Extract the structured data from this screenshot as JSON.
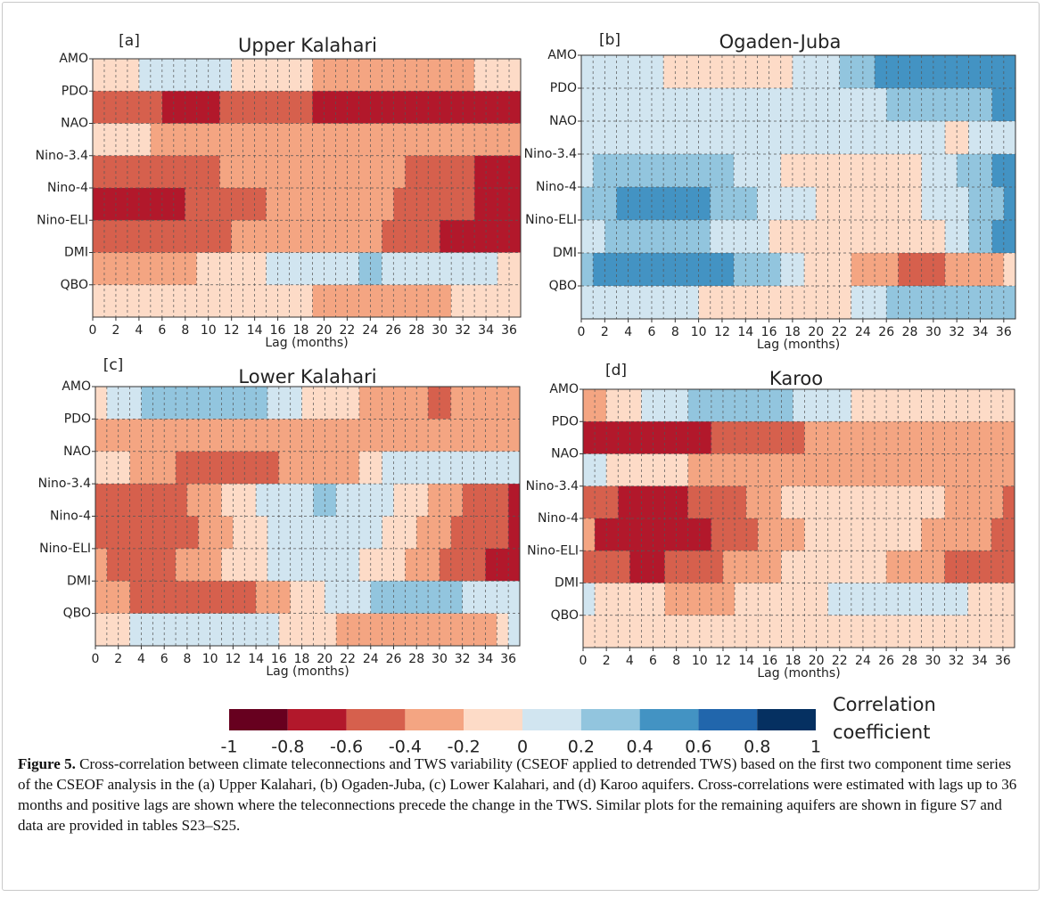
{
  "chart_data": [
    {
      "type": "heatmap",
      "label": "[a]",
      "title": "Upper Kalahari",
      "xlabel": "Lag (months)",
      "rows": [
        "AMO",
        "PDO",
        "NAO",
        "Nino-3.4",
        "Nino-4",
        "Nino-ELI",
        "DMI",
        "QBO"
      ],
      "xlim": [
        0,
        37
      ],
      "xticks": [
        0,
        2,
        4,
        6,
        8,
        10,
        12,
        14,
        16,
        18,
        20,
        22,
        24,
        26,
        28,
        30,
        32,
        34,
        36
      ],
      "cells": [
        [
          [
            0,
            4,
            -0.1
          ],
          [
            4,
            12,
            0.1
          ],
          [
            12,
            19,
            -0.1
          ],
          [
            19,
            33,
            -0.3
          ],
          [
            33,
            37,
            -0.1
          ]
        ],
        [
          [
            0,
            6,
            -0.5
          ],
          [
            6,
            11,
            -0.7
          ],
          [
            11,
            19,
            -0.5
          ],
          [
            19,
            37,
            -0.7
          ]
        ],
        [
          [
            0,
            5,
            -0.1
          ],
          [
            5,
            37,
            -0.3
          ]
        ],
        [
          [
            0,
            11,
            -0.5
          ],
          [
            11,
            27,
            -0.3
          ],
          [
            27,
            33,
            -0.5
          ],
          [
            33,
            37,
            -0.7
          ]
        ],
        [
          [
            0,
            8,
            -0.7
          ],
          [
            8,
            15,
            -0.5
          ],
          [
            15,
            26,
            -0.3
          ],
          [
            26,
            33,
            -0.5
          ],
          [
            33,
            37,
            -0.7
          ]
        ],
        [
          [
            0,
            12,
            -0.5
          ],
          [
            12,
            25,
            -0.3
          ],
          [
            25,
            30,
            -0.5
          ],
          [
            30,
            37,
            -0.7
          ]
        ],
        [
          [
            0,
            9,
            -0.3
          ],
          [
            9,
            15,
            -0.1
          ],
          [
            15,
            23,
            0.1
          ],
          [
            23,
            25,
            0.3
          ],
          [
            25,
            35,
            0.1
          ],
          [
            35,
            37,
            -0.1
          ]
        ],
        [
          [
            0,
            19,
            -0.1
          ],
          [
            19,
            31,
            -0.3
          ],
          [
            31,
            37,
            -0.1
          ]
        ]
      ]
    },
    {
      "type": "heatmap",
      "label": "[b]",
      "title": "Ogaden-Juba",
      "xlabel": "Lag (months)",
      "rows": [
        "AMO",
        "PDO",
        "NAO",
        "Nino-3.4",
        "Nino-4",
        "Nino-ELI",
        "DMI",
        "QBO"
      ],
      "xlim": [
        0,
        37
      ],
      "xticks": [
        0,
        2,
        4,
        6,
        8,
        10,
        12,
        14,
        16,
        18,
        20,
        22,
        24,
        26,
        28,
        30,
        32,
        34,
        36
      ],
      "cells": [
        [
          [
            0,
            7,
            0.1
          ],
          [
            7,
            18,
            -0.1
          ],
          [
            18,
            22,
            0.1
          ],
          [
            22,
            25,
            0.3
          ],
          [
            25,
            37,
            0.5
          ]
        ],
        [
          [
            0,
            26,
            0.1
          ],
          [
            26,
            35,
            0.3
          ],
          [
            35,
            37,
            0.5
          ]
        ],
        [
          [
            0,
            31,
            0.1
          ],
          [
            31,
            33,
            -0.1
          ],
          [
            33,
            37,
            0.1
          ]
        ],
        [
          [
            0,
            1,
            0.1
          ],
          [
            1,
            13,
            0.3
          ],
          [
            13,
            17,
            0.1
          ],
          [
            17,
            29,
            -0.1
          ],
          [
            29,
            32,
            0.1
          ],
          [
            32,
            35,
            0.3
          ],
          [
            35,
            37,
            0.5
          ]
        ],
        [
          [
            0,
            3,
            0.3
          ],
          [
            3,
            11,
            0.5
          ],
          [
            11,
            15,
            0.3
          ],
          [
            15,
            20,
            0.1
          ],
          [
            20,
            29,
            -0.1
          ],
          [
            29,
            33,
            0.1
          ],
          [
            33,
            36,
            0.3
          ],
          [
            36,
            37,
            0.5
          ]
        ],
        [
          [
            0,
            2,
            0.1
          ],
          [
            2,
            11,
            0.3
          ],
          [
            11,
            16,
            0.1
          ],
          [
            16,
            31,
            -0.1
          ],
          [
            31,
            33,
            0.1
          ],
          [
            33,
            35,
            0.3
          ],
          [
            35,
            37,
            0.5
          ]
        ],
        [
          [
            0,
            1,
            0.3
          ],
          [
            1,
            13,
            0.5
          ],
          [
            13,
            17,
            0.3
          ],
          [
            17,
            19,
            0.1
          ],
          [
            19,
            23,
            -0.1
          ],
          [
            23,
            27,
            -0.3
          ],
          [
            27,
            31,
            -0.5
          ],
          [
            31,
            36,
            -0.3
          ],
          [
            36,
            37,
            -0.1
          ]
        ],
        [
          [
            0,
            10,
            0.1
          ],
          [
            10,
            23,
            -0.1
          ],
          [
            23,
            26,
            0.1
          ],
          [
            26,
            37,
            0.3
          ]
        ]
      ]
    },
    {
      "type": "heatmap",
      "label": "[c]",
      "title": "Lower Kalahari",
      "xlabel": "Lag (months)",
      "rows": [
        "AMO",
        "PDO",
        "NAO",
        "Nino-3.4",
        "Nino-4",
        "Nino-ELI",
        "DMI",
        "QBO"
      ],
      "xlim": [
        0,
        37
      ],
      "xticks": [
        0,
        2,
        4,
        6,
        8,
        10,
        12,
        14,
        16,
        18,
        20,
        22,
        24,
        26,
        28,
        30,
        32,
        34,
        36
      ],
      "cells": [
        [
          [
            0,
            1,
            -0.1
          ],
          [
            1,
            4,
            0.1
          ],
          [
            4,
            15,
            0.3
          ],
          [
            15,
            18,
            0.1
          ],
          [
            18,
            23,
            -0.1
          ],
          [
            23,
            29,
            -0.3
          ],
          [
            29,
            31,
            -0.5
          ],
          [
            31,
            37,
            -0.3
          ]
        ],
        [
          [
            0,
            37,
            -0.3
          ]
        ],
        [
          [
            0,
            3,
            -0.1
          ],
          [
            3,
            7,
            -0.3
          ],
          [
            7,
            16,
            -0.5
          ],
          [
            16,
            23,
            -0.3
          ],
          [
            23,
            25,
            -0.1
          ],
          [
            25,
            37,
            0.1
          ]
        ],
        [
          [
            0,
            8,
            -0.5
          ],
          [
            8,
            11,
            -0.3
          ],
          [
            11,
            14,
            -0.1
          ],
          [
            14,
            19,
            0.1
          ],
          [
            19,
            21,
            0.3
          ],
          [
            21,
            26,
            0.1
          ],
          [
            26,
            29,
            -0.1
          ],
          [
            29,
            32,
            -0.3
          ],
          [
            32,
            36,
            -0.5
          ],
          [
            36,
            37,
            -0.7
          ]
        ],
        [
          [
            0,
            9,
            -0.5
          ],
          [
            9,
            12,
            -0.3
          ],
          [
            12,
            15,
            -0.1
          ],
          [
            15,
            25,
            0.1
          ],
          [
            25,
            28,
            -0.1
          ],
          [
            28,
            31,
            -0.3
          ],
          [
            31,
            36,
            -0.5
          ],
          [
            36,
            37,
            -0.7
          ]
        ],
        [
          [
            0,
            1,
            -0.3
          ],
          [
            1,
            7,
            -0.5
          ],
          [
            7,
            11,
            -0.3
          ],
          [
            11,
            15,
            -0.1
          ],
          [
            15,
            23,
            0.1
          ],
          [
            23,
            27,
            -0.1
          ],
          [
            27,
            30,
            -0.3
          ],
          [
            30,
            34,
            -0.5
          ],
          [
            34,
            37,
            -0.7
          ]
        ],
        [
          [
            0,
            3,
            -0.3
          ],
          [
            3,
            14,
            -0.5
          ],
          [
            14,
            17,
            -0.3
          ],
          [
            17,
            20,
            -0.1
          ],
          [
            20,
            24,
            0.1
          ],
          [
            24,
            32,
            0.3
          ],
          [
            32,
            37,
            0.1
          ]
        ],
        [
          [
            0,
            3,
            -0.1
          ],
          [
            3,
            16,
            0.1
          ],
          [
            16,
            21,
            -0.1
          ],
          [
            21,
            35,
            -0.3
          ],
          [
            35,
            36,
            -0.1
          ],
          [
            36,
            37,
            0.1
          ]
        ]
      ]
    },
    {
      "type": "heatmap",
      "label": "[d]",
      "title": "Karoo",
      "xlabel": "Lag (months)",
      "rows": [
        "AMO",
        "PDO",
        "NAO",
        "Nino-3.4",
        "Nino-4",
        "Nino-ELI",
        "DMI",
        "QBO"
      ],
      "xlim": [
        0,
        37
      ],
      "xticks": [
        0,
        2,
        4,
        6,
        8,
        10,
        12,
        14,
        16,
        18,
        20,
        22,
        24,
        26,
        28,
        30,
        32,
        34,
        36
      ],
      "cells": [
        [
          [
            0,
            2,
            -0.3
          ],
          [
            2,
            5,
            -0.1
          ],
          [
            5,
            9,
            0.1
          ],
          [
            9,
            18,
            0.3
          ],
          [
            18,
            23,
            0.1
          ],
          [
            23,
            37,
            -0.1
          ]
        ],
        [
          [
            0,
            11,
            -0.7
          ],
          [
            11,
            19,
            -0.5
          ],
          [
            19,
            37,
            -0.3
          ]
        ],
        [
          [
            0,
            2,
            0.1
          ],
          [
            2,
            9,
            -0.1
          ],
          [
            9,
            37,
            -0.3
          ]
        ],
        [
          [
            0,
            3,
            -0.5
          ],
          [
            3,
            9,
            -0.7
          ],
          [
            9,
            14,
            -0.5
          ],
          [
            14,
            17,
            -0.3
          ],
          [
            17,
            31,
            -0.1
          ],
          [
            31,
            36,
            -0.3
          ],
          [
            36,
            37,
            -0.5
          ]
        ],
        [
          [
            0,
            1,
            -0.3
          ],
          [
            1,
            11,
            -0.7
          ],
          [
            11,
            15,
            -0.5
          ],
          [
            15,
            19,
            -0.3
          ],
          [
            19,
            29,
            -0.1
          ],
          [
            29,
            35,
            -0.3
          ],
          [
            35,
            37,
            -0.5
          ]
        ],
        [
          [
            0,
            4,
            -0.5
          ],
          [
            4,
            7,
            -0.7
          ],
          [
            7,
            12,
            -0.5
          ],
          [
            12,
            17,
            -0.3
          ],
          [
            17,
            26,
            -0.1
          ],
          [
            26,
            31,
            -0.3
          ],
          [
            31,
            37,
            -0.5
          ]
        ],
        [
          [
            0,
            1,
            0.1
          ],
          [
            1,
            7,
            -0.1
          ],
          [
            7,
            13,
            -0.3
          ],
          [
            13,
            21,
            -0.1
          ],
          [
            21,
            33,
            0.1
          ],
          [
            33,
            37,
            -0.1
          ]
        ],
        [
          [
            0,
            37,
            -0.1
          ]
        ]
      ]
    }
  ],
  "colorbar": {
    "label": "Correlation coefficient",
    "ticks": [
      -1,
      -0.8,
      -0.6,
      -0.4,
      -0.2,
      0,
      0.2,
      0.4,
      0.6,
      0.8,
      1
    ],
    "colors": [
      "#67001f",
      "#b2182b",
      "#d6604d",
      "#f4a582",
      "#fddbc7",
      "#d1e5f0",
      "#92c5de",
      "#4393c3",
      "#2166ac",
      "#053061"
    ]
  },
  "caption": {
    "label": "Figure 5.",
    "text": "Cross-correlation between climate teleconnections and TWS variability (CSEOF applied to detrended TWS) based on the first two component time series of the CSEOF analysis in the (a) Upper Kalahari, (b) Ogaden-Juba, (c) Lower Kalahari, and (d) Karoo aquifers. Cross-correlations were estimated with lags up to 36 months and positive lags are shown where the teleconnections precede the change in the TWS. Similar plots for the remaining aquifers are shown in figure S7 and data are provided in tables S23–S25."
  }
}
